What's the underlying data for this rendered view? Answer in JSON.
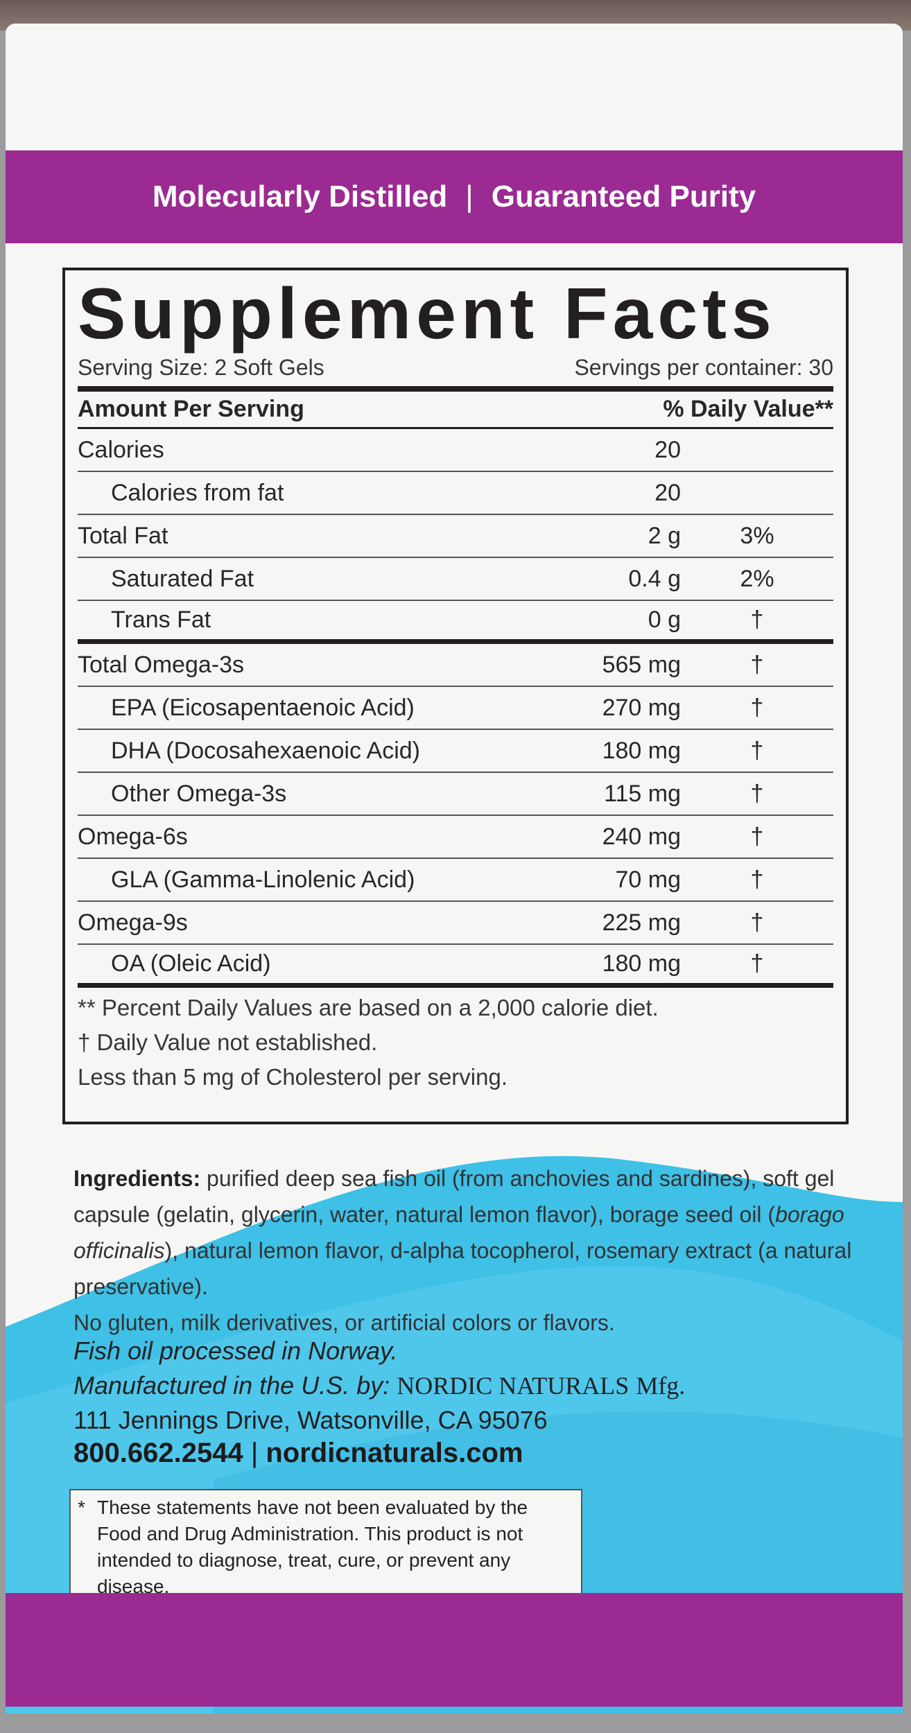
{
  "colors": {
    "purple": "#9b2a92",
    "blue": "#3fc0e6",
    "panel": "#f6f7f5"
  },
  "banner": {
    "left": "Molecularly Distilled",
    "separator": "|",
    "right": "Guaranteed Purity"
  },
  "facts": {
    "title": "Supplement Facts",
    "serving_size": "Serving Size: 2 Soft Gels",
    "servings_per_container": "Servings per container: 30",
    "header_amount": "Amount Per Serving",
    "header_dv": "% Daily Value**",
    "rows": [
      {
        "name": "Calories",
        "amount": "20",
        "dv": ""
      },
      {
        "name": "Calories from fat",
        "amount": "20",
        "dv": ""
      },
      {
        "name": "Total Fat",
        "amount": "2 g",
        "dv": "3%"
      },
      {
        "name": "Saturated Fat",
        "amount": "0.4 g",
        "dv": "2%"
      },
      {
        "name": "Trans Fat",
        "amount": "0 g",
        "dv": "†"
      },
      {
        "name": "Total Omega-3s",
        "amount": "565 mg",
        "dv": "†"
      },
      {
        "name": "EPA (Eicosapentaenoic Acid)",
        "amount": "270 mg",
        "dv": "†"
      },
      {
        "name": "DHA (Docosahexaenoic Acid)",
        "amount": "180 mg",
        "dv": "†"
      },
      {
        "name": "Other Omega-3s",
        "amount": "115 mg",
        "dv": "†"
      },
      {
        "name": "Omega-6s",
        "amount": "240 mg",
        "dv": "†"
      },
      {
        "name": "GLA (Gamma-Linolenic Acid)",
        "amount": "70 mg",
        "dv": "†"
      },
      {
        "name": "Omega-9s",
        "amount": "225 mg",
        "dv": "†"
      },
      {
        "name": "OA (Oleic Acid)",
        "amount": "180 mg",
        "dv": "†"
      }
    ],
    "footnotes": [
      "** Percent Daily Values are based on a 2,000 calorie diet.",
      "†  Daily Value not established.",
      "Less than 5 mg of Cholesterol per serving."
    ]
  },
  "ingredients": {
    "label": "Ingredients:",
    "text1": " purified deep sea fish oil (from anchovies and sardines), soft gel capsule (gelatin, glycerin, water, natural lemon flavor), borage seed oil (",
    "italic": "borago officinalis",
    "text2": "), natural lemon flavor, d-alpha tocopherol, rosemary extract (a natural preservative).",
    "free_from": "No gluten, milk derivatives, or artificial colors or flavors."
  },
  "manufacturer": {
    "origin": "Fish oil processed in Norway.",
    "made_by": "Manufactured in the U.S. by:",
    "brand": "NORDIC NATURALS",
    "mfg": "Mfg.",
    "address": "111 Jennings Drive, Watsonville, CA 95076"
  },
  "contact": {
    "phone": "800.662.2544",
    "separator": "|",
    "website": "nordicnaturals.com"
  },
  "disclaimer": {
    "star": "*",
    "text": "These statements have not been evaluated by the Food and Drug Administration. This product is not intended to diagnose, treat, cure, or prevent any disease."
  }
}
